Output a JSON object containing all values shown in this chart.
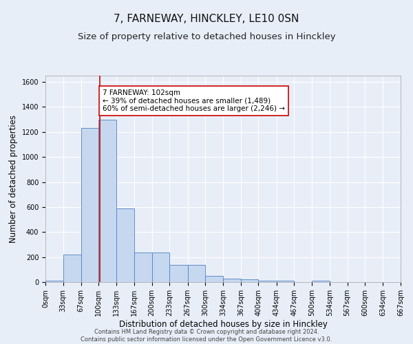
{
  "title": "7, FARNEWAY, HINCKLEY, LE10 0SN",
  "subtitle": "Size of property relative to detached houses in Hinckley",
  "xlabel": "Distribution of detached houses by size in Hinckley",
  "ylabel": "Number of detached properties",
  "footer_line1": "Contains HM Land Registry data © Crown copyright and database right 2024.",
  "footer_line2": "Contains public sector information licensed under the Open Government Licence v3.0.",
  "bar_edges": [
    0,
    33,
    67,
    100,
    133,
    167,
    200,
    233,
    267,
    300,
    334,
    367,
    400,
    434,
    467,
    500,
    534,
    567,
    600,
    634,
    667
  ],
  "bar_heights": [
    10,
    220,
    1230,
    1300,
    590,
    235,
    235,
    140,
    140,
    48,
    25,
    20,
    10,
    10,
    0,
    10,
    0,
    0,
    0,
    0
  ],
  "bar_color": "#c5d8f0",
  "bar_edge_color": "#5080c0",
  "property_line_x": 102,
  "property_line_color": "#cc0000",
  "annotation_text": "7 FARNEWAY: 102sqm\n← 39% of detached houses are smaller (1,489)\n60% of semi-detached houses are larger (2,246) →",
  "annotation_box_color": "#ffffff",
  "annotation_box_edge_color": "#cc0000",
  "ylim": [
    0,
    1650
  ],
  "yticks": [
    0,
    200,
    400,
    600,
    800,
    1000,
    1200,
    1400,
    1600
  ],
  "xtick_labels": [
    "0sqm",
    "33sqm",
    "67sqm",
    "100sqm",
    "133sqm",
    "167sqm",
    "200sqm",
    "233sqm",
    "267sqm",
    "300sqm",
    "334sqm",
    "367sqm",
    "400sqm",
    "434sqm",
    "467sqm",
    "500sqm",
    "534sqm",
    "567sqm",
    "600sqm",
    "634sqm",
    "667sqm"
  ],
  "background_color": "#e8eef8",
  "grid_color": "#ffffff",
  "fig_bg_color": "#e8eef8",
  "title_fontsize": 11,
  "subtitle_fontsize": 9.5,
  "xlabel_fontsize": 8.5,
  "ylabel_fontsize": 8.5,
  "tick_fontsize": 7,
  "footer_fontsize": 6,
  "annotation_fontsize": 7.5
}
